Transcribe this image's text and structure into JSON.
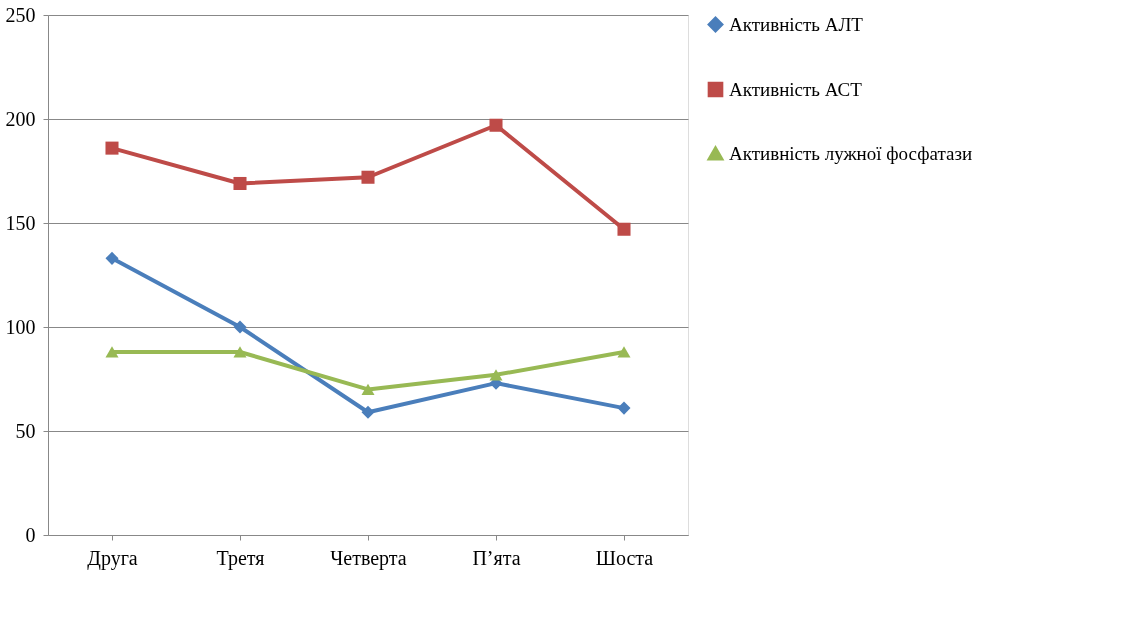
{
  "chart_data": {
    "type": "line",
    "categories": [
      "Друга",
      "Третя",
      "Четверта",
      "П’ята",
      "Шоста"
    ],
    "series": [
      {
        "name": "Активність АЛТ",
        "color": "#4a7ebb",
        "marker": "diamond",
        "values": [
          133,
          100,
          59,
          73,
          61
        ]
      },
      {
        "name": "Активність АСТ",
        "color": "#be4b48",
        "marker": "square",
        "values": [
          186,
          169,
          172,
          197,
          147
        ]
      },
      {
        "name": "Активність лужної фосфатази",
        "color": "#98b954",
        "marker": "triangle",
        "values": [
          88,
          88,
          70,
          77,
          88
        ]
      }
    ],
    "ylim": [
      0,
      250
    ],
    "yticks": [
      0,
      50,
      100,
      150,
      200,
      250
    ],
    "grid": "y",
    "legend": "right",
    "line_style": "solid"
  }
}
